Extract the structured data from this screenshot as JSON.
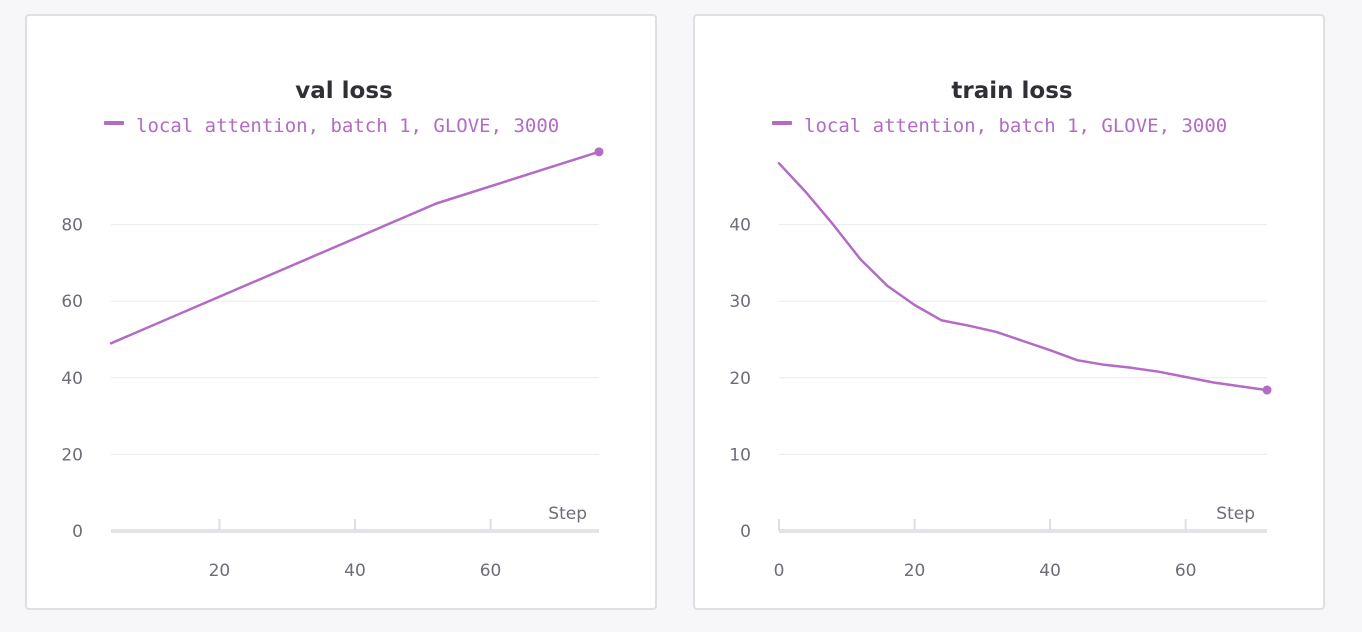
{
  "chart_data": [
    {
      "type": "line",
      "title": "val loss",
      "xlabel": "Step",
      "ylabel": "",
      "xlim": [
        4,
        76
      ],
      "ylim": [
        0,
        100
      ],
      "xticks": [
        20,
        40,
        60
      ],
      "yticks": [
        0,
        20,
        40,
        60,
        80
      ],
      "grid": true,
      "legend_position": "top",
      "series": [
        {
          "name": "local attention, batch 1, GLOVE, 3000",
          "color": "#b36bc4",
          "x": [
            4,
            52,
            76
          ],
          "y": [
            49,
            85.5,
            99
          ]
        }
      ]
    },
    {
      "type": "line",
      "title": "train loss",
      "xlabel": "Step",
      "ylabel": "",
      "xlim": [
        0,
        72
      ],
      "ylim": [
        0,
        50
      ],
      "xticks": [
        0,
        20,
        40,
        60
      ],
      "yticks": [
        0,
        10,
        20,
        30,
        40
      ],
      "grid": true,
      "legend_position": "top",
      "series": [
        {
          "name": "local attention, batch 1, GLOVE, 3000",
          "color": "#b36bc4",
          "x": [
            0,
            4,
            8,
            12,
            16,
            20,
            24,
            28,
            32,
            36,
            40,
            44,
            48,
            52,
            56,
            60,
            64,
            68,
            72
          ],
          "y": [
            48,
            44.2,
            40,
            35.5,
            32,
            29.5,
            27.5,
            26.8,
            26,
            24.8,
            23.6,
            22.3,
            21.7,
            21.3,
            20.8,
            20.1,
            19.4,
            18.9,
            18.4
          ]
        }
      ]
    }
  ]
}
